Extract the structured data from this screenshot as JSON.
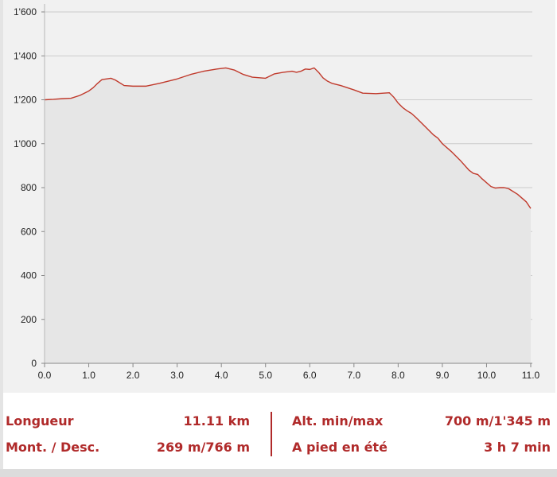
{
  "chart_data": {
    "type": "area",
    "title": "",
    "xlabel": "",
    "ylabel": "",
    "xlim": [
      0,
      11.0
    ],
    "ylim": [
      0,
      1600
    ],
    "x_ticks": [
      0,
      1,
      2,
      3,
      4,
      5,
      6,
      7,
      8,
      9,
      10,
      11
    ],
    "x_tick_labels": [
      "0.0",
      "1.0",
      "2.0",
      "3.0",
      "4.0",
      "5.0",
      "6.0",
      "7.0",
      "8.0",
      "9.0",
      "10.0",
      "11.0"
    ],
    "y_ticks": [
      0,
      200,
      400,
      600,
      800,
      1000,
      1200,
      1400,
      1600
    ],
    "y_tick_labels": [
      "0",
      "200",
      "400",
      "600",
      "800",
      "1'000",
      "1'200",
      "1'400",
      "1'600"
    ],
    "grid": "horizontal",
    "colors": {
      "line": "#c0392b",
      "fill": "#e6e6e6",
      "panel": "#f1f1f1",
      "grid": "#cccccc"
    },
    "series": [
      {
        "x": [
          0,
          0.2,
          0.4,
          0.6,
          0.8,
          1.0,
          1.1,
          1.2,
          1.3,
          1.4,
          1.5,
          1.6,
          1.8,
          2.0,
          2.3,
          2.6,
          3.0,
          3.3,
          3.6,
          3.9,
          4.1,
          4.3,
          4.5,
          4.7,
          5.0,
          5.2,
          5.4,
          5.6,
          5.7,
          5.8,
          5.9,
          6.0,
          6.1,
          6.2,
          6.3,
          6.4,
          6.5,
          6.7,
          7.0,
          7.2,
          7.5,
          7.8,
          7.9,
          8.0,
          8.1,
          8.2,
          8.3,
          8.4,
          8.6,
          8.8,
          8.9,
          9.0,
          9.2,
          9.4,
          9.6,
          9.7,
          9.8,
          9.9,
          10.1,
          10.2,
          10.3,
          10.4,
          10.5,
          10.7,
          10.9,
          11.0
        ],
        "y": [
          1200,
          1202,
          1205,
          1207,
          1220,
          1240,
          1255,
          1275,
          1292,
          1295,
          1298,
          1290,
          1265,
          1262,
          1262,
          1275,
          1295,
          1315,
          1330,
          1340,
          1345,
          1335,
          1315,
          1303,
          1298,
          1318,
          1325,
          1330,
          1325,
          1330,
          1340,
          1338,
          1345,
          1325,
          1300,
          1285,
          1275,
          1265,
          1245,
          1230,
          1228,
          1232,
          1212,
          1185,
          1165,
          1150,
          1138,
          1120,
          1080,
          1040,
          1025,
          1000,
          965,
          925,
          880,
          865,
          860,
          840,
          805,
          798,
          800,
          800,
          795,
          770,
          735,
          705
        ]
      }
    ]
  },
  "stats": {
    "length_label": "Longueur",
    "length_value": "11.11 km",
    "ascent_label": "Mont. / Desc.",
    "ascent_value": "269 m/766 m",
    "alt_label": "Alt. min/max",
    "alt_value": "700 m/1'345 m",
    "time_label": "A pied en été",
    "time_value": "3 h 7 min"
  }
}
